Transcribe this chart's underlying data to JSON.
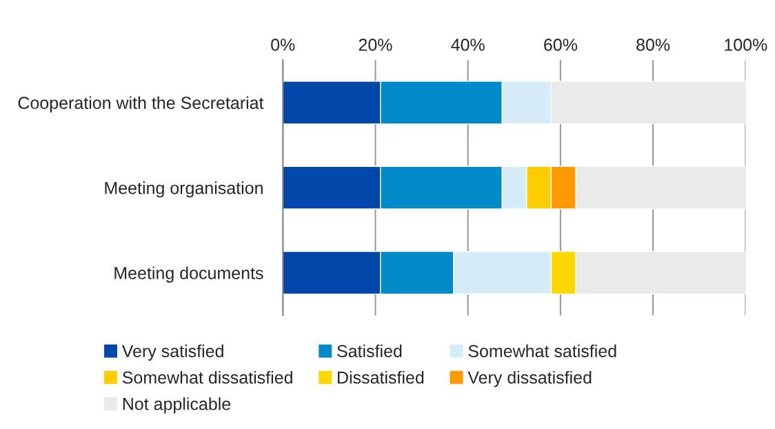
{
  "chart_data": {
    "type": "bar",
    "orientation": "horizontal",
    "stacked": true,
    "categories": [
      "Cooperation with the Secretariat",
      "Meeting organisation",
      "Meeting documents"
    ],
    "series": [
      {
        "name": "Very satisfied",
        "color": "#0047ab",
        "values": [
          21.1,
          21.1,
          21.1
        ]
      },
      {
        "name": "Satisfied",
        "color": "#008ac9",
        "values": [
          26.3,
          26.3,
          15.8
        ]
      },
      {
        "name": "Somewhat satisfied",
        "color": "#d6edf9",
        "values": [
          10.5,
          5.3,
          21.1
        ]
      },
      {
        "name": "Somewhat dissatisfied",
        "color": "#ffcc00",
        "values": [
          null,
          5.3,
          null
        ]
      },
      {
        "name": "Dissatisfied",
        "color": "#ffd700",
        "values": [
          null,
          null,
          5.3
        ]
      },
      {
        "name": "Very dissatisfied",
        "color": "#ff9900",
        "values": [
          null,
          5.3,
          null
        ]
      },
      {
        "name": "Not applicable",
        "color": "#e9e9e9",
        "values": [
          42.1,
          36.8,
          36.8
        ]
      }
    ],
    "xlim": [
      0,
      100
    ],
    "xticks": [
      {
        "value": 0,
        "label": "0%"
      },
      {
        "value": 20,
        "label": "20%"
      },
      {
        "value": 40,
        "label": "40%"
      },
      {
        "value": 60,
        "label": "60%"
      },
      {
        "value": 80,
        "label": "80%"
      },
      {
        "value": 100,
        "label": "100%"
      }
    ],
    "grid": "x",
    "legend": "bottom"
  }
}
